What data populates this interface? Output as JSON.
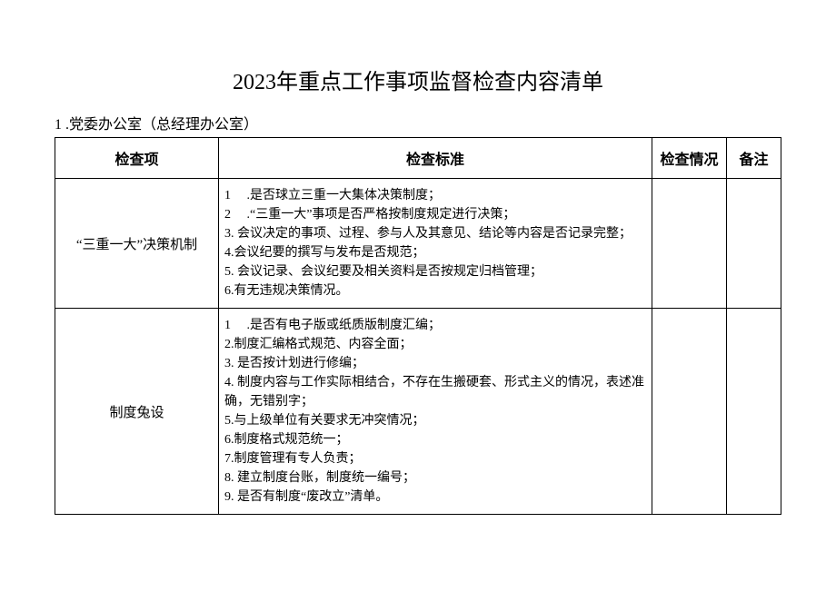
{
  "title": "2023年重点工作事项监督检查内容清单",
  "section": "1 .党委办公室（总经理办公室）",
  "table": {
    "headers": {
      "item": "检查项",
      "standard": "检查标准",
      "status": "检查情况",
      "remark": "备注"
    },
    "rows": [
      {
        "item": "“三重一大”决策机制",
        "standards": [
          "1     .是否球立三重一大集体决策制度；",
          "2     .“三重一大”事项是否严格按制度规定进行决策；",
          "3. 会议决定的事项、过程、参与人及其意见、结论等内容是否记录完整；",
          "4.会议纪要的撰写与发布是否规范；",
          "5. 会议记录、会议纪要及相关资料是否按规定归档管理；",
          "6.有无违规决策情况。"
        ]
      },
      {
        "item": "制度兔设",
        "standards": [
          "1     .是否有电子版或纸质版制度汇编；",
          "2.制度汇编格式规范、内容全面；",
          "3. 是否按计划进行修编；",
          "4. 制度内容与工作实际相结合，不存在生搬硬套、形式主义的情况，表述准确，无错别字；",
          "5.与上级单位有关要求无冲突情况；",
          "6.制度格式规范统一；",
          "7.制度管理有专人负责；",
          "8. 建立制度台账，制度统一编号；",
          "9. 是否有制度“废改立”清单。"
        ]
      }
    ]
  },
  "style": {
    "background_color": "#ffffff",
    "border_color": "#000000",
    "text_color": "#000000",
    "title_fontsize": 24,
    "header_fontsize": 16,
    "body_fontsize": 14
  }
}
